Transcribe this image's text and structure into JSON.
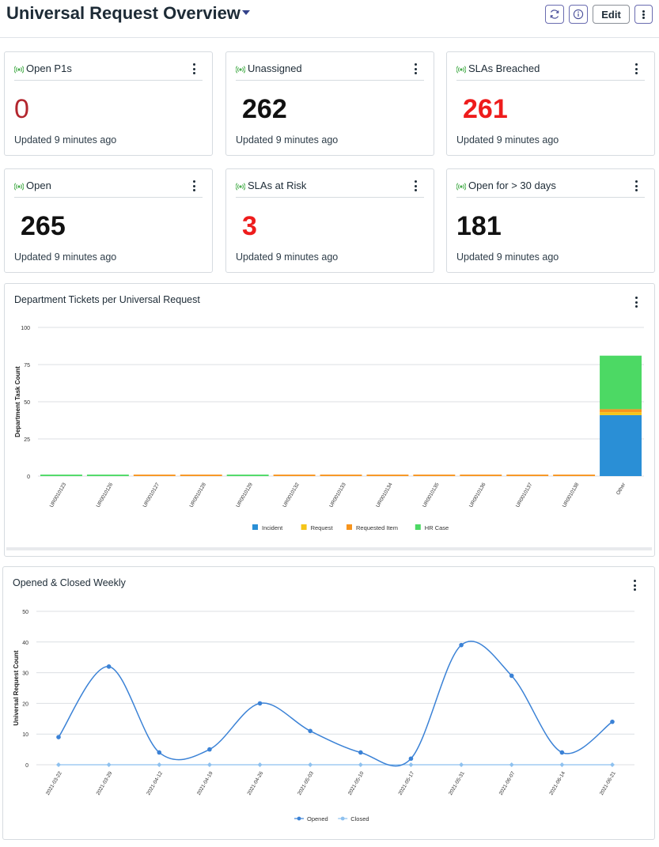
{
  "header": {
    "title": "Universal Request Overview",
    "edit_label": "Edit",
    "icons": [
      "refresh-icon",
      "info-icon",
      "more-vert-icon"
    ]
  },
  "kpis": [
    {
      "title": "Open P1s",
      "value": "0",
      "updated": "Updated 9 minutes ago",
      "value_color": "#b3262e",
      "bold": false
    },
    {
      "title": "Unassigned",
      "value": "262",
      "updated": "Updated 9 minutes ago",
      "value_color": "#111111",
      "bold": true
    },
    {
      "title": "SLAs Breached",
      "value": "261",
      "updated": "Updated 9 minutes ago",
      "value_color": "#ee1c1c",
      "bold": true
    },
    {
      "title": "Open",
      "value": "265",
      "updated": "Updated 9 minutes ago",
      "value_color": "#111111",
      "bold": true
    },
    {
      "title": "SLAs at Risk",
      "value": "3",
      "updated": "Updated 9 minutes ago",
      "value_color": "#ee1c1c",
      "bold": true
    },
    {
      "title": "Open for > 30 days",
      "value": "181",
      "updated": "Updated 9 minutes ago",
      "value_color": "#111111",
      "bold": true
    }
  ],
  "colors": {
    "live_indicator": "#4caf50",
    "incident": "#2a8fd6",
    "request": "#f5c518",
    "requested_item": "#f7941d",
    "hr_case": "#4cd964",
    "opened": "#3b82d6",
    "closed": "#8ec1ef"
  },
  "chart_data": [
    {
      "type": "bar",
      "stacked": true,
      "title": "Department Tickets per Universal Request",
      "xlabel": "",
      "ylabel": "Department Task Count",
      "ylim": [
        0,
        100
      ],
      "yticks": [
        0,
        25,
        50,
        75,
        100
      ],
      "grid": true,
      "legend_position": "bottom",
      "categories": [
        "UR0010123",
        "UR0010126",
        "UR0010127",
        "UR0010128",
        "UR0010129",
        "UR0010132",
        "UR0010133",
        "UR0010134",
        "UR0010135",
        "UR0010136",
        "UR0010137",
        "UR0010138",
        "Other"
      ],
      "series": [
        {
          "name": "Incident",
          "values": [
            0,
            0,
            0,
            0,
            0,
            0,
            0,
            0,
            0,
            0,
            0,
            0,
            41
          ]
        },
        {
          "name": "Request",
          "values": [
            0,
            0,
            0,
            0,
            0,
            0,
            0,
            0,
            0,
            0,
            0,
            0,
            2
          ]
        },
        {
          "name": "Requested Item",
          "values": [
            0,
            0,
            1,
            1,
            0,
            1,
            1,
            1,
            1,
            1,
            1,
            1,
            2
          ]
        },
        {
          "name": "HR Case",
          "values": [
            1,
            1,
            0,
            0,
            1,
            0,
            0,
            0,
            0,
            0,
            0,
            0,
            36
          ]
        }
      ]
    },
    {
      "type": "line",
      "title": "Opened & Closed Weekly",
      "xlabel": "",
      "ylabel": "Universal Request Count",
      "ylim": [
        0,
        50
      ],
      "yticks": [
        0,
        10,
        20,
        30,
        40,
        50
      ],
      "grid": true,
      "legend_position": "bottom",
      "x": [
        "2021-03-22",
        "2021-03-29",
        "2021-04-12",
        "2021-04-19",
        "2021-04-26",
        "2021-05-03",
        "2021-05-10",
        "2021-05-17",
        "2021-05-31",
        "2021-06-07",
        "2021-06-14",
        "2021-06-21"
      ],
      "series": [
        {
          "name": "Opened",
          "values": [
            9,
            32,
            4,
            5,
            20,
            11,
            4,
            2,
            39,
            29,
            4,
            14
          ]
        },
        {
          "name": "Closed",
          "values": [
            0,
            0,
            0,
            0,
            0,
            0,
            0,
            0,
            0,
            0,
            0,
            0
          ]
        }
      ]
    }
  ]
}
